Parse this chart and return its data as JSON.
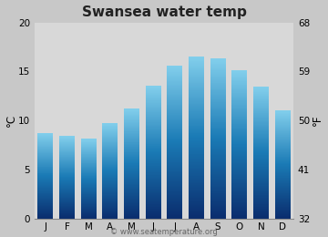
{
  "title": "Swansea water temp",
  "months": [
    "J",
    "F",
    "M",
    "A",
    "M",
    "J",
    "J",
    "A",
    "S",
    "O",
    "N",
    "D"
  ],
  "values": [
    8.7,
    8.4,
    8.1,
    9.7,
    11.2,
    13.5,
    15.6,
    16.5,
    16.3,
    15.1,
    13.4,
    11.0
  ],
  "ylim_c": [
    0,
    20
  ],
  "ylim_f": [
    32,
    68
  ],
  "yticks_c": [
    0,
    5,
    10,
    15,
    20
  ],
  "yticks_f": [
    32,
    41,
    50,
    59,
    68
  ],
  "bar_color_bottom": "#0a2d6e",
  "bar_color_mid": "#1a7ab5",
  "bar_color_top": "#82cfec",
  "plot_bg_color": "#d8d8d8",
  "fig_bg_color": "#c8c8c8",
  "title_fontsize": 11,
  "tick_fontsize": 7.5,
  "axis_label_left": "°C",
  "axis_label_right": "°F",
  "watermark": "© www.seatemperature.org",
  "watermark_fontsize": 6,
  "figsize": [
    3.6,
    2.6
  ],
  "dpi": 100
}
